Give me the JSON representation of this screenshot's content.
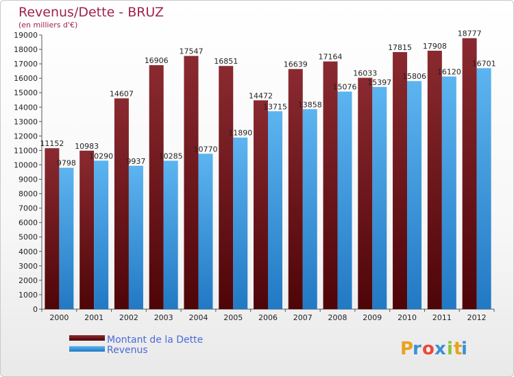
{
  "chart_data": {
    "type": "bar",
    "title": "Revenus/Dette - BRUZ",
    "subtitle": "(en milliers d'€)",
    "categories": [
      "2000",
      "2001",
      "2002",
      "2003",
      "2004",
      "2005",
      "2006",
      "2007",
      "2008",
      "2009",
      "2010",
      "2011",
      "2012"
    ],
    "series": [
      {
        "name": "Montant de la Dette",
        "color": "#7a1f24",
        "values": [
          11152,
          10983,
          14607,
          16906,
          17547,
          16851,
          14472,
          16639,
          17164,
          16033,
          17815,
          17908,
          18777
        ]
      },
      {
        "name": "Revenus",
        "color": "#3a95df",
        "values": [
          9798,
          10290,
          9937,
          10285,
          10770,
          11890,
          13715,
          13858,
          15076,
          15397,
          15806,
          16120,
          16701
        ]
      }
    ],
    "ylim": [
      0,
      19000
    ],
    "yticks": [
      "0",
      "1000",
      "2000",
      "3000",
      "4000",
      "5000",
      "6000",
      "7000",
      "8000",
      "9000",
      "10000",
      "11000",
      "12000",
      "13000",
      "14000",
      "15000",
      "16000",
      "17000",
      "18000",
      "19000"
    ],
    "grid": false,
    "legend_position": "bottom-left"
  },
  "brand": {
    "letters": [
      "P",
      "r",
      "o",
      "x",
      "i",
      "t",
      "i"
    ],
    "colors": [
      "#e8a21c",
      "#3a8fd8",
      "#e84a3a",
      "#3a8fd8",
      "#8cc23c",
      "#e8a21c",
      "#3a8fd8"
    ]
  }
}
